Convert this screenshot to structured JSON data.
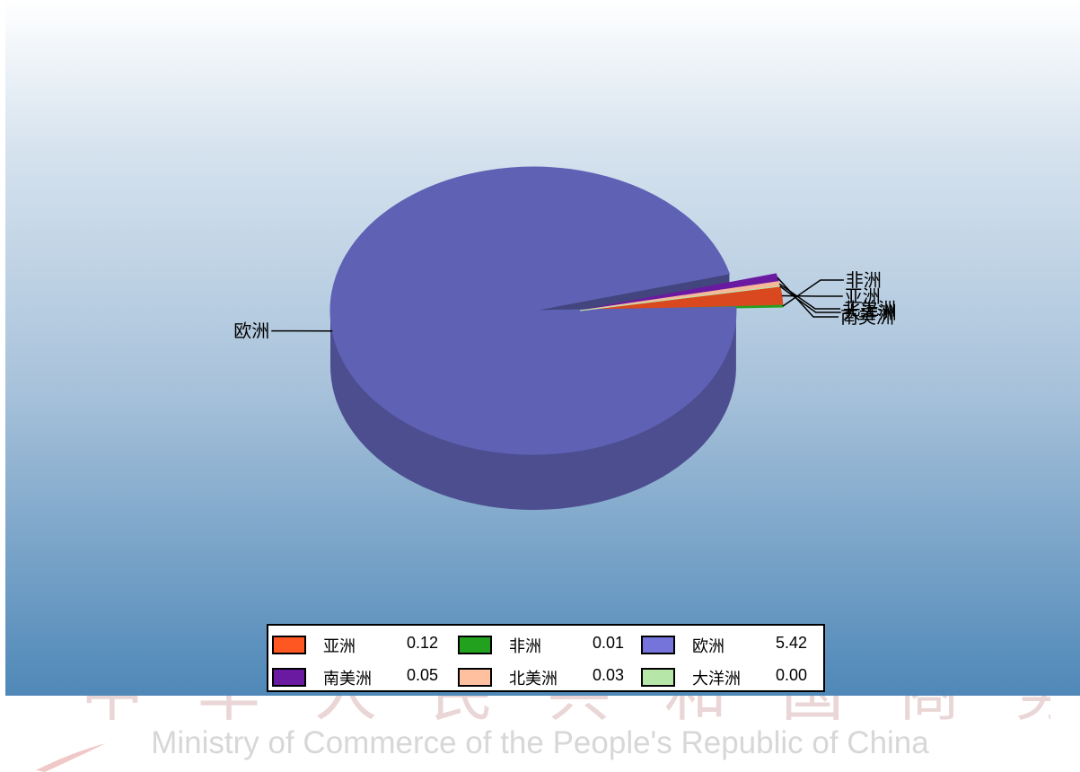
{
  "chart_data": {
    "type": "pie",
    "style": "3d",
    "categories": [
      "亚洲",
      "非洲",
      "欧洲",
      "南美洲",
      "北美洲",
      "大洋洲"
    ],
    "values": [
      0.12,
      0.01,
      5.42,
      0.05,
      0.03,
      0.0
    ],
    "value_labels": [
      "0.12",
      "0.01",
      "5.42",
      "0.05",
      "0.03",
      "0.00"
    ],
    "colors": [
      "#d9481f",
      "#22a11e",
      "#5f62b4",
      "#6a1aa0",
      "#f6b89b",
      "#b6e6a8"
    ],
    "legend_colors": [
      "#ff5722",
      "#22a11e",
      "#7474db",
      "#6a1aa0",
      "#ffc0a0",
      "#b6e6a8"
    ],
    "legend_position": "bottom"
  },
  "watermark": {
    "english": "Ministry of Commerce of the People's Republic of China",
    "chinese": "中华人民共和国商务部"
  }
}
